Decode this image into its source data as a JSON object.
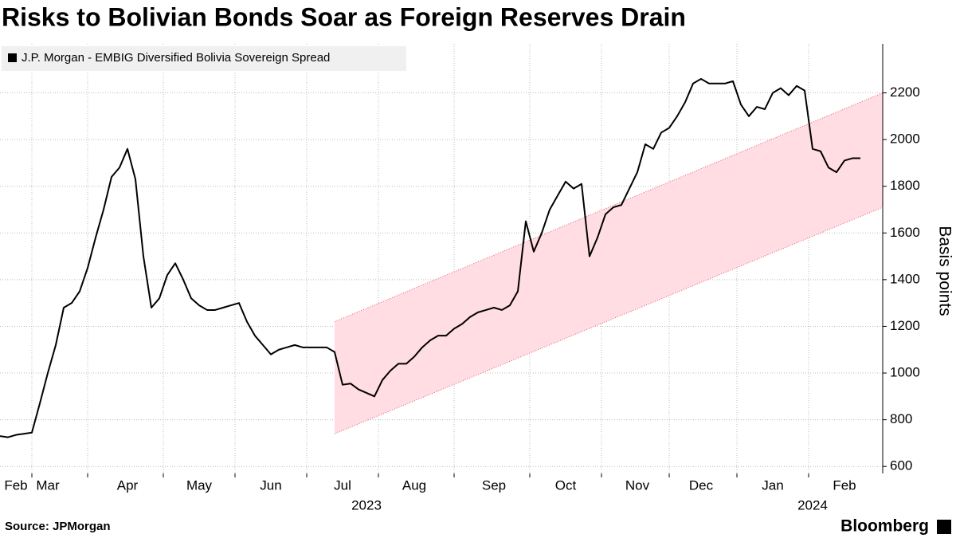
{
  "chart_data": {
    "type": "line",
    "title": "Risks to Bolivian Bonds Soar as Foreign Reserves Drain",
    "y_label": "Basis points",
    "source": "Source: JPMorgan",
    "brand": "Bloomberg",
    "categories": [
      null,
      null,
      "Feb",
      null,
      null,
      null,
      "Mar",
      null,
      null,
      null,
      null,
      null,
      null,
      null,
      null,
      null,
      "Apr",
      null,
      null,
      null,
      null,
      null,
      null,
      null,
      null,
      "May",
      null,
      null,
      null,
      null,
      null,
      null,
      null,
      null,
      "Jun",
      null,
      null,
      null,
      null,
      null,
      null,
      null,
      null,
      "Jul",
      null,
      null,
      null,
      null,
      null,
      null,
      null,
      null,
      "Aug",
      null,
      null,
      null,
      null,
      null,
      null,
      null,
      null,
      null,
      "Sep",
      null,
      null,
      null,
      null,
      null,
      null,
      null,
      null,
      "Oct",
      null,
      null,
      null,
      null,
      null,
      null,
      null,
      null,
      "Nov",
      null,
      null,
      null,
      null,
      null,
      null,
      null,
      "Dec",
      null,
      null,
      null,
      null,
      null,
      null,
      null,
      null,
      "Jan",
      null,
      null,
      null,
      null,
      null,
      null,
      null,
      null,
      "Feb",
      null,
      null
    ],
    "year_labels": [
      null,
      null,
      null,
      null,
      null,
      null,
      null,
      null,
      null,
      null,
      null,
      null,
      null,
      null,
      null,
      null,
      null,
      null,
      null,
      null,
      null,
      null,
      null,
      null,
      null,
      null,
      null,
      null,
      null,
      null,
      null,
      null,
      null,
      null,
      null,
      null,
      null,
      null,
      null,
      null,
      null,
      null,
      null,
      null,
      null,
      null,
      "2023",
      null,
      null,
      null,
      null,
      null,
      null,
      null,
      null,
      null,
      null,
      null,
      null,
      null,
      null,
      null,
      null,
      null,
      null,
      null,
      null,
      null,
      null,
      null,
      null,
      null,
      null,
      null,
      null,
      null,
      null,
      null,
      null,
      null,
      null,
      null,
      null,
      null,
      null,
      null,
      null,
      null,
      null,
      null,
      null,
      null,
      null,
      null,
      null,
      null,
      null,
      null,
      null,
      null,
      null,
      null,
      "2024",
      null,
      null,
      null,
      null,
      null,
      null
    ],
    "series": [
      {
        "name": "J.P. Morgan - EMBIG Diversified Bolivia Sovereign Spread",
        "color": "#000000",
        "values": [
          730,
          725,
          735,
          740,
          745,
          870,
          1000,
          1120,
          1280,
          1300,
          1350,
          1450,
          1580,
          1700,
          1840,
          1880,
          1960,
          1830,
          1500,
          1280,
          1320,
          1420,
          1470,
          1400,
          1320,
          1290,
          1270,
          1270,
          1280,
          1290,
          1300,
          1220,
          1160,
          1120,
          1080,
          1100,
          1110,
          1120,
          1110,
          1110,
          1110,
          1110,
          1090,
          950,
          955,
          930,
          915,
          900,
          970,
          1010,
          1040,
          1040,
          1070,
          1110,
          1140,
          1160,
          1160,
          1190,
          1210,
          1240,
          1260,
          1270,
          1280,
          1270,
          1290,
          1350,
          1650,
          1520,
          1600,
          1700,
          1760,
          1820,
          1790,
          1810,
          1500,
          1580,
          1680,
          1710,
          1720,
          1790,
          1860,
          1980,
          1960,
          2030,
          2050,
          2100,
          2160,
          2240,
          2260,
          2240,
          2240,
          2240,
          2250,
          2150,
          2100,
          2140,
          2130,
          2200,
          2220,
          2190,
          2230,
          2210,
          1960,
          1950,
          1880,
          1860,
          1910,
          1920,
          1920
        ]
      }
    ],
    "band": {
      "start": 42,
      "upper": [
        1220,
        2200
      ],
      "lower": [
        740,
        1710
      ],
      "color": "#ffdde3",
      "edge_color": "#e05a6e"
    },
    "ylim": [
      570,
      2410
    ],
    "yticks": [
      600,
      800,
      1000,
      1200,
      1400,
      1600,
      1800,
      2000,
      2200
    ],
    "grid": true
  }
}
